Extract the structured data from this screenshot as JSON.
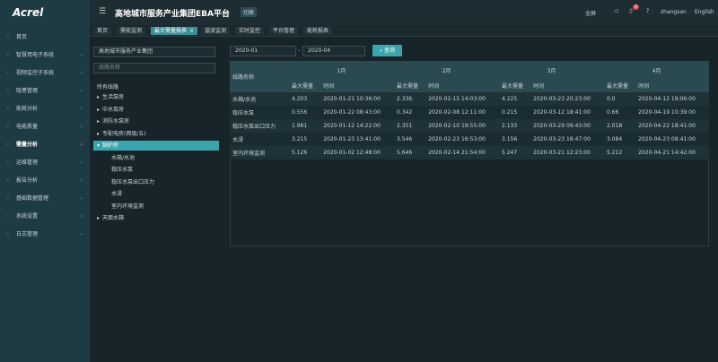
{
  "header": {
    "logo": "Acrel",
    "title": "高地城市服务产业集团EBA平台",
    "badge": "切换",
    "fullscreen": "全屏",
    "notification_count": "0",
    "user": "zhangsan",
    "language": "English"
  },
  "sidebar": {
    "items": [
      "首页",
      "智慧用电子系统",
      "视频监控子系统",
      "隐患管理",
      "能耗分析",
      "电能质量",
      "需量分析",
      "运维管理",
      "报告分析",
      "基础数据管理",
      "系统设置",
      "日志管理"
    ],
    "active": 6
  },
  "tabs": {
    "items": [
      "首页",
      "需能监测",
      "最大需量报表",
      "谐波监测",
      "实时监控",
      "平台管理",
      "能耗报表"
    ],
    "active": 2
  },
  "tree": {
    "company": "高地城市服务产业集团",
    "search_placeholder": "线路名称",
    "root": "所有线路",
    "nodes": [
      {
        "label": "生活泵房"
      },
      {
        "label": "中水泵房"
      },
      {
        "label": "消防水泵房"
      },
      {
        "label": "专配电房(两级/五)"
      },
      {
        "label": "锅炉房",
        "children": [
          "水箱/水池",
          "稳压水泵",
          "稳压水泵出口压力",
          "水浸",
          "室内环境监测"
        ]
      },
      {
        "label": "天面水箱"
      }
    ],
    "selected": 4
  },
  "query": {
    "start": "2020-01",
    "separator": "-",
    "end": "2020-04",
    "button": "查询"
  },
  "table": {
    "line_header": "线路名称",
    "months": [
      "1月",
      "2月",
      "3月",
      "4月"
    ],
    "subheaders": [
      "最大需量",
      "时间"
    ],
    "rows": [
      [
        "水箱/水池",
        "4.203",
        "2020-01-21 10:36:00",
        "2.336",
        "2020-02-15 14:03:00",
        "4.225",
        "2020-03-23 20:23:00",
        "0.0",
        "2020-04-12 19:06:00"
      ],
      [
        "稳压水泵",
        "0.556",
        "2020-01-22 08:43:00",
        "0.342",
        "2020-02-08 12:11:00",
        "0.215",
        "2020-03-12 18:41:00",
        "0.66",
        "2020-04-19 10:39:00"
      ],
      [
        "稳压水泵出口压力",
        "1.981",
        "2020-01-12 14:22:00",
        "2.351",
        "2020-02-10 19:55:00",
        "2.133",
        "2020-03-29 09:43:00",
        "2.018",
        "2020-04-22 18:41:00"
      ],
      [
        "水浸",
        "3.215",
        "2020-01-23 13:41:00",
        "3.546",
        "2020-02-23 16:53:00",
        "3.156",
        "2020-03-23 18:47:00",
        "3.084",
        "2020-04-23 08:41:00"
      ],
      [
        "室内环境监测",
        "5.126",
        "2020-01-02 12:48:00",
        "5.646",
        "2020-02-14 21:54:00",
        "5.247",
        "2020-03-21 12:23:00",
        "5.212",
        "2020-04-21 14:42:00"
      ]
    ]
  }
}
